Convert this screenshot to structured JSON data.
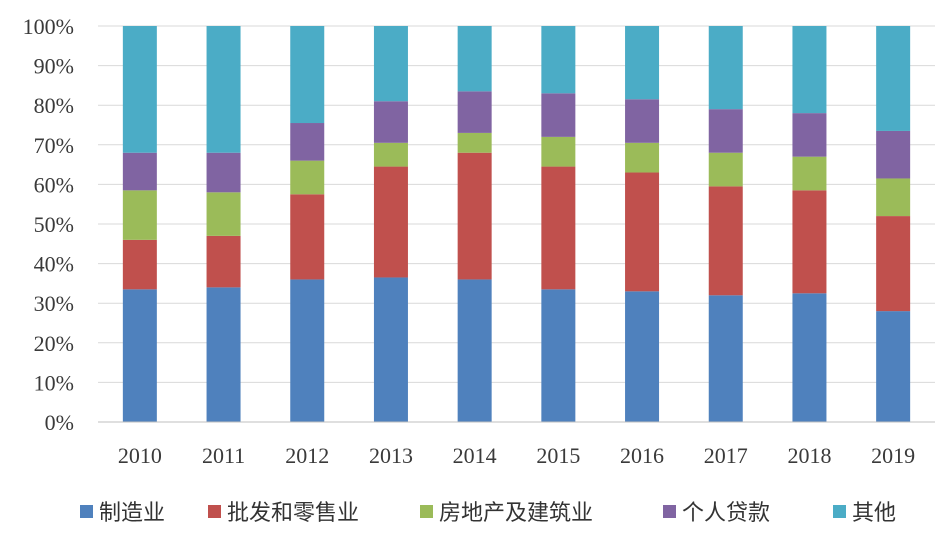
{
  "chart_data": {
    "type": "bar",
    "stacked": true,
    "percent": true,
    "categories": [
      "2010",
      "2011",
      "2012",
      "2013",
      "2014",
      "2015",
      "2016",
      "2017",
      "2018",
      "2019"
    ],
    "series": [
      {
        "name": "制造业",
        "color": "#4f81bd",
        "values": [
          33.5,
          34,
          36,
          36.5,
          36,
          33.5,
          33,
          32,
          32.5,
          28
        ]
      },
      {
        "name": "批发和零售业",
        "color": "#c0504d",
        "values": [
          12.5,
          13,
          21.5,
          28,
          32,
          31,
          30,
          27.5,
          26,
          24
        ]
      },
      {
        "name": "房地产及建筑业",
        "color": "#9bbb59",
        "values": [
          12.5,
          11,
          8.5,
          6,
          5,
          7.5,
          7.5,
          8.5,
          8.5,
          9.5
        ]
      },
      {
        "name": "个人贷款",
        "color": "#8064a2",
        "values": [
          9.5,
          10,
          9.5,
          10.5,
          10.5,
          11,
          11,
          11,
          11,
          12
        ]
      },
      {
        "name": "其他",
        "color": "#4bacc6",
        "values": [
          32,
          32,
          24.5,
          19,
          16.5,
          17,
          18.5,
          21,
          22,
          26.5
        ]
      }
    ],
    "yticks": [
      "0%",
      "10%",
      "20%",
      "30%",
      "40%",
      "50%",
      "60%",
      "70%",
      "80%",
      "90%",
      "100%"
    ],
    "ylim": [
      0,
      100
    ],
    "grid": true,
    "legend_position": "bottom"
  }
}
